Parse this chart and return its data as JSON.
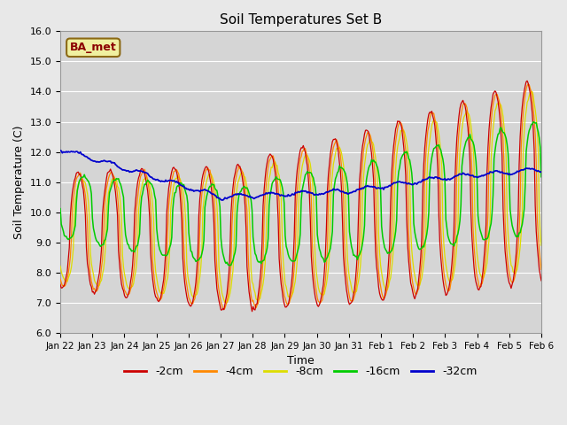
{
  "title": "Soil Temperatures Set B",
  "xlabel": "Time",
  "ylabel": "Soil Temperature (C)",
  "ylim": [
    6.0,
    16.0
  ],
  "yticks": [
    6.0,
    7.0,
    8.0,
    9.0,
    10.0,
    11.0,
    12.0,
    13.0,
    14.0,
    15.0,
    16.0
  ],
  "colors": {
    "-2cm": "#cc0000",
    "-4cm": "#ff8800",
    "-8cm": "#dddd00",
    "-16cm": "#00cc00",
    "-32cm": "#0000cc"
  },
  "legend_label": "BA_met",
  "background_color": "#e8e8e8",
  "plot_bg_color": "#d5d5d5",
  "x_tick_labels": [
    "Jan 22",
    "Jan 23",
    "Jan 24",
    "Jan 25",
    "Jan 26",
    "Jan 27",
    "Jan 28",
    "Jan 29",
    "Jan 30",
    "Jan 31",
    "Feb 1",
    "Feb 2",
    "Feb 3",
    "Feb 4",
    "Feb 5",
    "Feb 6"
  ],
  "n_points": 480,
  "figsize": [
    6.4,
    4.8
  ],
  "dpi": 100
}
